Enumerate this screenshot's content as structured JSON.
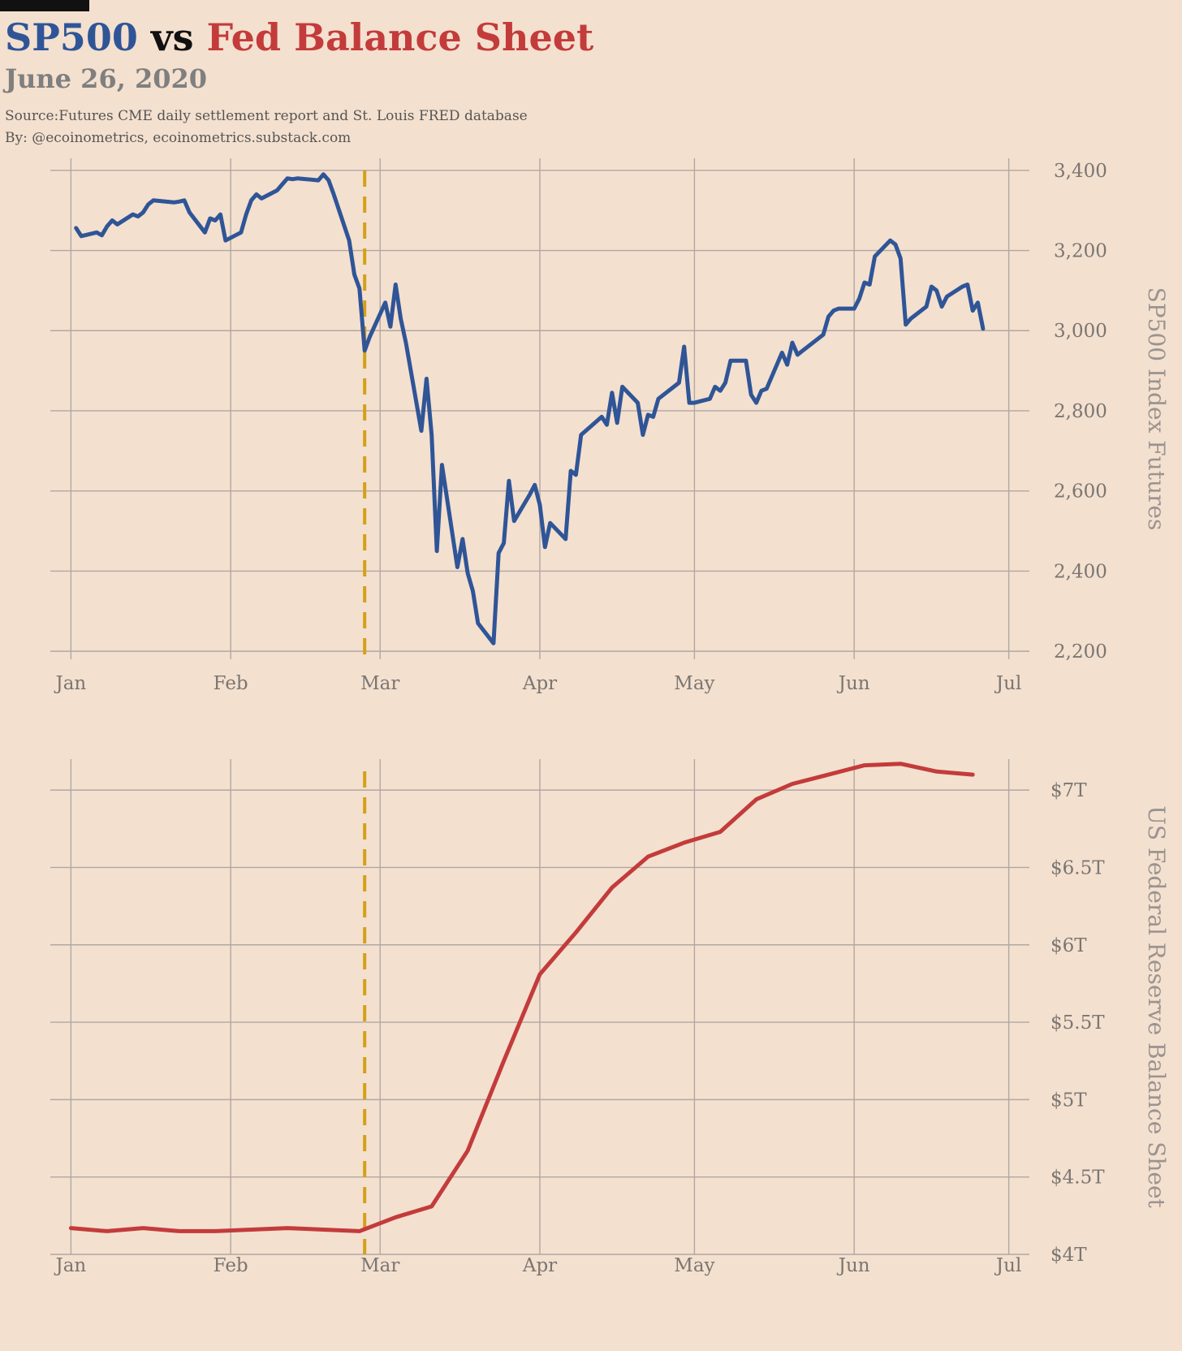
{
  "header": {
    "title_part1": "SP500",
    "title_vs": " vs ",
    "title_part2": "Fed Balance Sheet",
    "subtitle": "June 26, 2020",
    "source": "Source:Futures CME daily settlement report and St. Louis FRED database",
    "byline": "By: @ecoinometrics, ecoinometrics.substack.com"
  },
  "colors": {
    "sp500": "#2f5597",
    "fed": "#c33b3b",
    "marker": "#d4a017",
    "background": "#f4e0cf"
  },
  "chart_data": [
    {
      "type": "line",
      "title": "",
      "ylabel": "SP500 Index Futures",
      "y_axis_position": "right",
      "grid": true,
      "x_ticks": [
        "Jan",
        "Feb",
        "Mar",
        "Apr",
        "May",
        "Jun",
        "Jul"
      ],
      "y_ticks": [
        "2,200",
        "2,400",
        "2,600",
        "2,800",
        "3,000",
        "3,200",
        "3,400"
      ],
      "y_tick_values": [
        2200,
        2400,
        2600,
        2800,
        3000,
        3200,
        3400
      ],
      "ylim": [
        2180,
        3430
      ],
      "xlim": [
        "2019-12-28",
        "2020-07-05"
      ],
      "vline": "2020-02-27",
      "series": [
        {
          "color": "#2f5597",
          "x": [
            "2020-01-02",
            "2020-01-03",
            "2020-01-06",
            "2020-01-07",
            "2020-01-08",
            "2020-01-09",
            "2020-01-10",
            "2020-01-13",
            "2020-01-14",
            "2020-01-15",
            "2020-01-16",
            "2020-01-17",
            "2020-01-21",
            "2020-01-22",
            "2020-01-23",
            "2020-01-24",
            "2020-01-27",
            "2020-01-28",
            "2020-01-29",
            "2020-01-30",
            "2020-01-31",
            "2020-02-03",
            "2020-02-04",
            "2020-02-05",
            "2020-02-06",
            "2020-02-07",
            "2020-02-10",
            "2020-02-11",
            "2020-02-12",
            "2020-02-13",
            "2020-02-14",
            "2020-02-18",
            "2020-02-19",
            "2020-02-20",
            "2020-02-21",
            "2020-02-24",
            "2020-02-25",
            "2020-02-26",
            "2020-02-27",
            "2020-02-28",
            "2020-03-02",
            "2020-03-03",
            "2020-03-04",
            "2020-03-05",
            "2020-03-06",
            "2020-03-09",
            "2020-03-10",
            "2020-03-11",
            "2020-03-12",
            "2020-03-13",
            "2020-03-16",
            "2020-03-17",
            "2020-03-18",
            "2020-03-19",
            "2020-03-20",
            "2020-03-23",
            "2020-03-24",
            "2020-03-25",
            "2020-03-26",
            "2020-03-27",
            "2020-03-30",
            "2020-03-31",
            "2020-04-01",
            "2020-04-02",
            "2020-04-03",
            "2020-04-06",
            "2020-04-07",
            "2020-04-08",
            "2020-04-09",
            "2020-04-13",
            "2020-04-14",
            "2020-04-15",
            "2020-04-16",
            "2020-04-17",
            "2020-04-20",
            "2020-04-21",
            "2020-04-22",
            "2020-04-23",
            "2020-04-24",
            "2020-04-27",
            "2020-04-28",
            "2020-04-29",
            "2020-04-30",
            "2020-05-01",
            "2020-05-04",
            "2020-05-05",
            "2020-05-06",
            "2020-05-07",
            "2020-05-08",
            "2020-05-11",
            "2020-05-12",
            "2020-05-13",
            "2020-05-14",
            "2020-05-15",
            "2020-05-18",
            "2020-05-19",
            "2020-05-20",
            "2020-05-21",
            "2020-05-22",
            "2020-05-26",
            "2020-05-27",
            "2020-05-28",
            "2020-05-29",
            "2020-06-01",
            "2020-06-02",
            "2020-06-03",
            "2020-06-04",
            "2020-06-05",
            "2020-06-08",
            "2020-06-09",
            "2020-06-10",
            "2020-06-11",
            "2020-06-12",
            "2020-06-15",
            "2020-06-16",
            "2020-06-17",
            "2020-06-18",
            "2020-06-19",
            "2020-06-22",
            "2020-06-23",
            "2020-06-24",
            "2020-06-25",
            "2020-06-26"
          ],
          "y": [
            3256,
            3236,
            3245,
            3238,
            3260,
            3275,
            3265,
            3290,
            3285,
            3295,
            3315,
            3325,
            3320,
            3322,
            3325,
            3295,
            3245,
            3280,
            3275,
            3290,
            3225,
            3245,
            3290,
            3325,
            3340,
            3330,
            3350,
            3365,
            3380,
            3378,
            3380,
            3375,
            3390,
            3375,
            3340,
            3225,
            3140,
            3105,
            2950,
            2985,
            3070,
            3010,
            3115,
            3030,
            2970,
            2750,
            2880,
            2740,
            2450,
            2665,
            2410,
            2480,
            2395,
            2350,
            2270,
            2220,
            2445,
            2470,
            2625,
            2525,
            2590,
            2615,
            2565,
            2460,
            2520,
            2480,
            2650,
            2640,
            2740,
            2785,
            2765,
            2845,
            2770,
            2860,
            2820,
            2740,
            2790,
            2785,
            2830,
            2860,
            2870,
            2960,
            2820,
            2820,
            2830,
            2860,
            2850,
            2870,
            2925,
            2925,
            2840,
            2820,
            2850,
            2855,
            2945,
            2915,
            2970,
            2940,
            2950,
            2990,
            3035,
            3050,
            3055,
            3055,
            3080,
            3120,
            3115,
            3185,
            3225,
            3215,
            3180,
            3015,
            3030,
            3060,
            3110,
            3100,
            3060,
            3085,
            3110,
            3115,
            3050,
            3070,
            3005
          ]
        }
      ]
    },
    {
      "type": "line",
      "title": "",
      "ylabel": "US Federal Reserve Balance Sheet",
      "y_axis_position": "right",
      "grid": true,
      "x_ticks": [
        "Jan",
        "Feb",
        "Mar",
        "Apr",
        "May",
        "Jun",
        "Jul"
      ],
      "y_ticks": [
        "$4T",
        "$4.5T",
        "$5T",
        "$5.5T",
        "$6T",
        "$6.5T",
        "$7T"
      ],
      "y_tick_values": [
        4.0,
        4.5,
        5.0,
        5.5,
        6.0,
        6.5,
        7.0
      ],
      "ylim": [
        4.0,
        7.2
      ],
      "xlim": [
        "2019-12-28",
        "2020-07-05"
      ],
      "vline": "2020-02-27",
      "series": [
        {
          "color": "#c33b3b",
          "x": [
            "2020-01-01",
            "2020-01-08",
            "2020-01-15",
            "2020-01-22",
            "2020-01-29",
            "2020-02-05",
            "2020-02-12",
            "2020-02-19",
            "2020-02-26",
            "2020-03-04",
            "2020-03-11",
            "2020-03-18",
            "2020-03-25",
            "2020-04-01",
            "2020-04-08",
            "2020-04-15",
            "2020-04-22",
            "2020-04-29",
            "2020-05-06",
            "2020-05-13",
            "2020-05-20",
            "2020-05-27",
            "2020-06-03",
            "2020-06-10",
            "2020-06-17",
            "2020-06-24"
          ],
          "y": [
            4.17,
            4.15,
            4.17,
            4.15,
            4.15,
            4.16,
            4.17,
            4.16,
            4.15,
            4.24,
            4.31,
            4.67,
            5.25,
            5.81,
            6.08,
            6.37,
            6.57,
            6.66,
            6.73,
            6.94,
            7.04,
            7.1,
            7.16,
            7.17,
            7.12,
            7.1
          ]
        }
      ]
    }
  ]
}
